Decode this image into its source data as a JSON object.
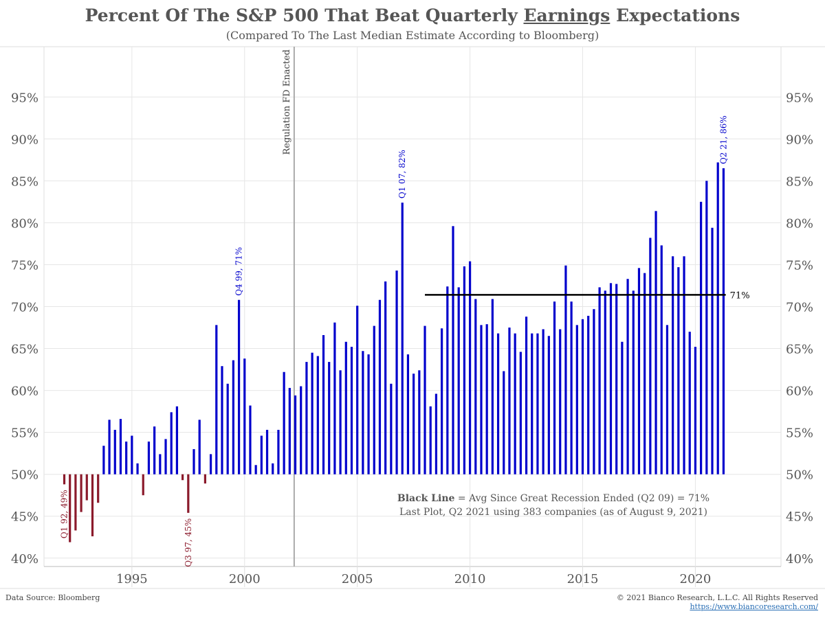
{
  "header": {
    "title_before": "Percent Of The S&P 500 That Beat Quarterly ",
    "title_underlined": "Earnings",
    "title_after": " Expectations",
    "subtitle": "(Compared To The Last Median Estimate According to Bloomberg)"
  },
  "footer": {
    "source": "Data Source: Bloomberg",
    "copyright": "© 2021 Bianco Research, L.L.C. All Rights Reserved",
    "url": "https://www.biancoresearch.com/"
  },
  "note": {
    "line1_bold": "Black Line",
    "line1_rest": " = Avg Since Great Recession Ended (Q2 09) = 71%",
    "line2": "Last Plot, Q2 2021 using 383 companies (as of August 9, 2021)"
  },
  "chart_data": {
    "type": "bar",
    "title": "Percent Of The S&P 500 That Beat Quarterly Earnings Expectations",
    "subtitle": "(Compared To The Last Median Estimate According to Bloomberg)",
    "baseline": 50,
    "ylim": [
      39,
      101
    ],
    "yticks": [
      40,
      45,
      50,
      55,
      60,
      65,
      70,
      75,
      80,
      85,
      90,
      95
    ],
    "ytick_labels": [
      "40%",
      "45%",
      "50%",
      "55%",
      "60%",
      "65%",
      "70%",
      "75%",
      "80%",
      "85%",
      "90%",
      "95%"
    ],
    "xlim": [
      1991.1,
      2023.8
    ],
    "xticks": [
      1995,
      2000,
      2005,
      2010,
      2015,
      2020
    ],
    "xtick_labels": [
      "1995",
      "2000",
      "2005",
      "2010",
      "2015",
      "2020"
    ],
    "grid": true,
    "colors": {
      "above": "#0000cc",
      "below": "#8b1a2b",
      "avg_line": "#000000",
      "event_line": "#aaaaaa",
      "grid": "#e6e6e6"
    },
    "start_quarter": "Q1 1992",
    "values": [
      48.8,
      41.9,
      43.3,
      45.5,
      46.9,
      42.6,
      46.6,
      53.4,
      56.5,
      55.3,
      56.6,
      53.9,
      54.6,
      51.3,
      47.5,
      53.9,
      55.7,
      52.4,
      54.2,
      57.4,
      58.1,
      49.3,
      45.4,
      53.0,
      56.5,
      48.9,
      52.4,
      67.8,
      62.9,
      60.8,
      63.6,
      70.8,
      63.8,
      58.2,
      51.1,
      54.6,
      55.3,
      51.3,
      55.3,
      62.2,
      60.3,
      59.4,
      60.5,
      63.4,
      64.5,
      64.1,
      66.6,
      63.4,
      68.1,
      62.4,
      65.8,
      65.2,
      70.1,
      64.7,
      64.3,
      67.7,
      70.8,
      73.0,
      60.8,
      74.3,
      82.4,
      64.3,
      62.0,
      62.4,
      67.7,
      58.1,
      59.6,
      67.4,
      72.4,
      79.6,
      72.3,
      74.8,
      75.4,
      70.9,
      67.8,
      67.9,
      70.9,
      66.8,
      62.3,
      67.5,
      66.8,
      64.6,
      68.8,
      66.8,
      66.8,
      67.3,
      66.5,
      70.6,
      67.3,
      74.9,
      70.6,
      67.8,
      68.5,
      68.9,
      69.7,
      72.3,
      71.9,
      72.8,
      72.7,
      65.8,
      73.3,
      71.9,
      74.6,
      74.0,
      78.2,
      81.4,
      77.3,
      67.8,
      76.0,
      74.7,
      76.0,
      67.0,
      65.2,
      82.5,
      85.0,
      79.4,
      87.2,
      86.5
    ],
    "avg_line": {
      "value": 71.4,
      "from": 2008.0,
      "to": 2021.35,
      "label": "71%"
    },
    "event_line": {
      "x": 2002.2,
      "label": "Regulation FD Enacted"
    },
    "annotations": [
      {
        "x": 1992.0,
        "y": 48.8,
        "text": "Q1 92, 49%",
        "color": "#8b1a2b",
        "side": "below"
      },
      {
        "x": 1997.5,
        "y": 45.4,
        "text": "Q3 97, 45%",
        "color": "#8b1a2b",
        "side": "below"
      },
      {
        "x": 1999.75,
        "y": 70.8,
        "text": "Q4 99, 71%",
        "color": "#0000cc",
        "side": "above"
      },
      {
        "x": 2007.0,
        "y": 82.4,
        "text": "Q1 07, 82%",
        "color": "#0000cc",
        "side": "above"
      },
      {
        "x": 2021.25,
        "y": 86.5,
        "text": "Q2 21, 86%",
        "color": "#0000cc",
        "side": "above"
      }
    ]
  }
}
